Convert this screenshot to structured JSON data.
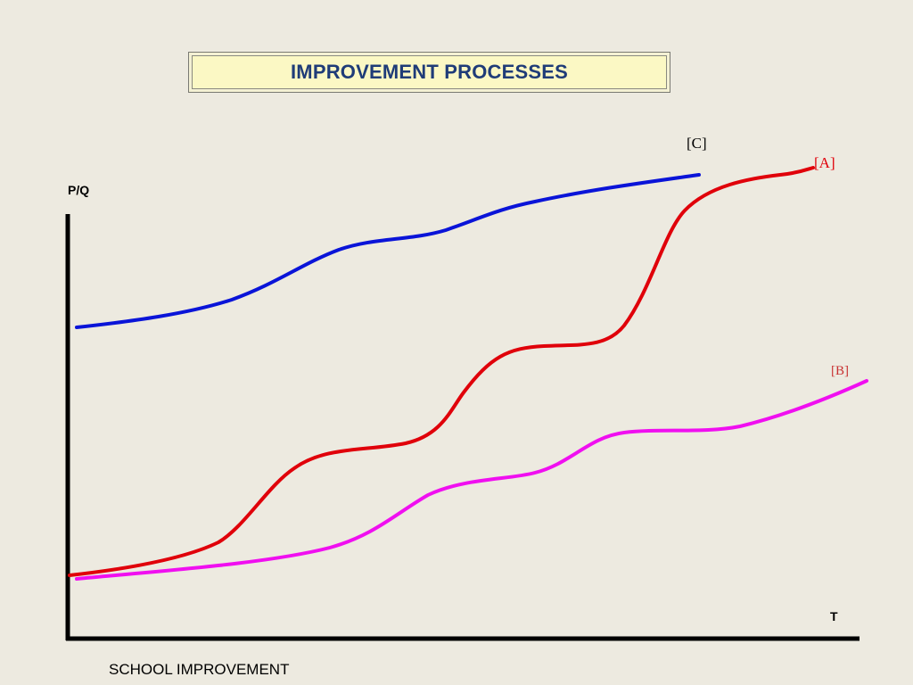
{
  "title": "IMPROVEMENT PROCESSES",
  "axes": {
    "y_label": "P/Q",
    "x_label": "T"
  },
  "caption": "SCHOOL IMPROVEMENT",
  "curves": [
    {
      "id": "C",
      "label": "[C]",
      "color": "#0a14d8",
      "label_color": "#000000"
    },
    {
      "id": "A",
      "label": "[A]",
      "color": "#e0000a",
      "label_color": "#e0000a"
    },
    {
      "id": "B",
      "label": "[B]",
      "color": "#f00ff0",
      "label_color": "#c83232"
    }
  ]
}
